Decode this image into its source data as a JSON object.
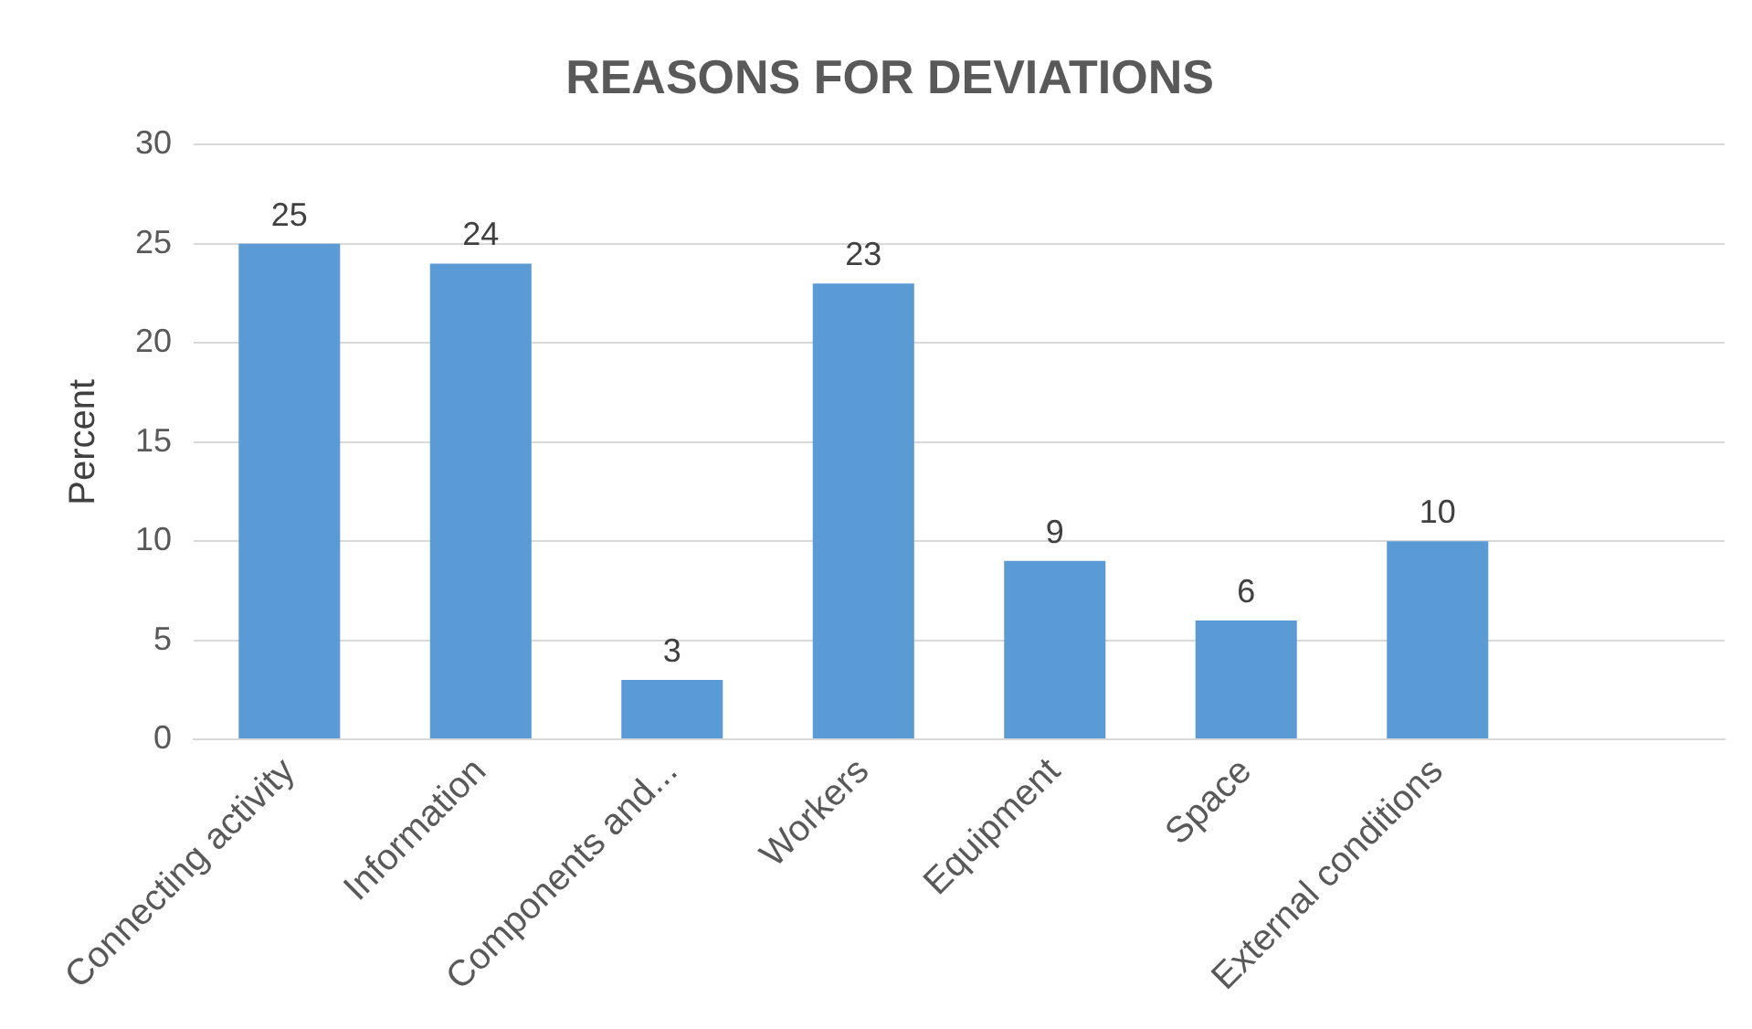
{
  "chart_data": {
    "type": "bar",
    "title": "REASONS FOR DEVIATIONS",
    "ylabel": "Percent",
    "categories": [
      "Connecting activity",
      "Information",
      "Components and...",
      "Workers",
      "Equipment",
      "Space",
      "External conditions",
      null
    ],
    "values": [
      25,
      24,
      3,
      23,
      9,
      6,
      10,
      null
    ],
    "color": "#5b9bd5",
    "ylim": [
      0,
      30
    ],
    "yticks": [
      0,
      5,
      10,
      15,
      20,
      25,
      30
    ],
    "grid": "y",
    "data_labels": true,
    "legend": false
  }
}
